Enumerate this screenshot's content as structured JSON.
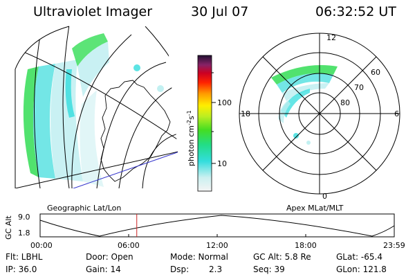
{
  "header": {
    "title": "Ultraviolet Imager",
    "date": "30 Jul 07",
    "time": "06:32:52 UT"
  },
  "colorbar": {
    "unit": "photon cm",
    "unit_exp1": "-2",
    "unit_s": "s",
    "unit_exp2": "-1",
    "ticks": [
      "100",
      "10"
    ]
  },
  "polar": {
    "mlt_labels": {
      "top": "12",
      "left": "18",
      "right": "6",
      "bottom": "0"
    },
    "lat_labels": [
      "60",
      "70",
      "80"
    ]
  },
  "map_labels": {
    "geographic": "Geographic Lat/Lon",
    "apex": "Apex MLat/MLT"
  },
  "timeline": {
    "axis_label": "GC Alt",
    "y_ticks": [
      "9.0",
      "1.8"
    ],
    "x_ticks": [
      "00:00",
      "06:00",
      "12:00",
      "18:00",
      "23:59"
    ],
    "current_time_marker_hours": 6.55
  },
  "info": {
    "flt": "Flt: LBHL",
    "ip": "IP: 36.0",
    "door": "Door: Open",
    "gain": "Gain: 14",
    "mode": "Mode: Normal",
    "dsp_label": "Dsp:",
    "dsp_value": "2.3",
    "gc_alt": "GC Alt: 5.8 Re",
    "seq": "Seq: 39",
    "glat": "GLat: -65.4",
    "glon": "GLon: 121.8"
  },
  "colors": {
    "aurora_green": "#33dd33",
    "aurora_cyan": "#33dddd",
    "aurora_light": "#bbeef0",
    "marker_red": "#cc2222",
    "blue_line": "#3333cc"
  }
}
